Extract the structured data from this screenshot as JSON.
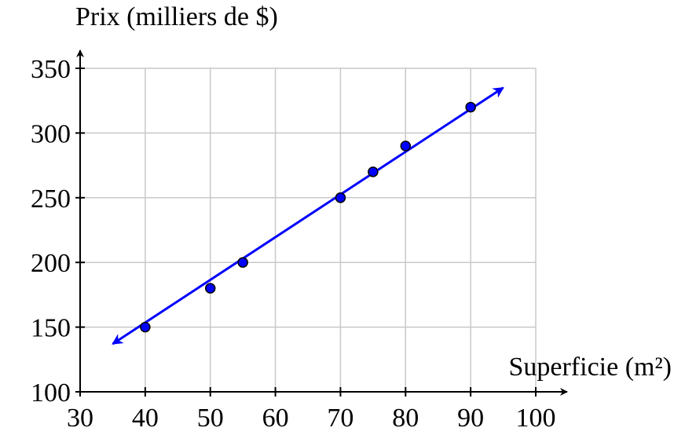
{
  "chart_data": {
    "type": "scatter",
    "x_label": "Superficie (m²)",
    "y_label": "Prix (milliers de $)",
    "series": [
      {
        "color": "#0000ff",
        "x": [
          40,
          50,
          55,
          70,
          75,
          80,
          90
        ],
        "values": [
          150,
          180,
          200,
          250,
          270,
          290,
          320
        ]
      }
    ],
    "fit": {
      "color": "#0000ff",
      "x": [
        35,
        95
      ],
      "values": [
        137,
        335
      ]
    },
    "xlim": [
      30,
      100
    ],
    "ylim": [
      100,
      350
    ],
    "xticks": [
      30,
      40,
      50,
      60,
      70,
      80,
      90,
      100
    ],
    "yticks": [
      100,
      150,
      200,
      250,
      300,
      350
    ],
    "grid": true
  }
}
